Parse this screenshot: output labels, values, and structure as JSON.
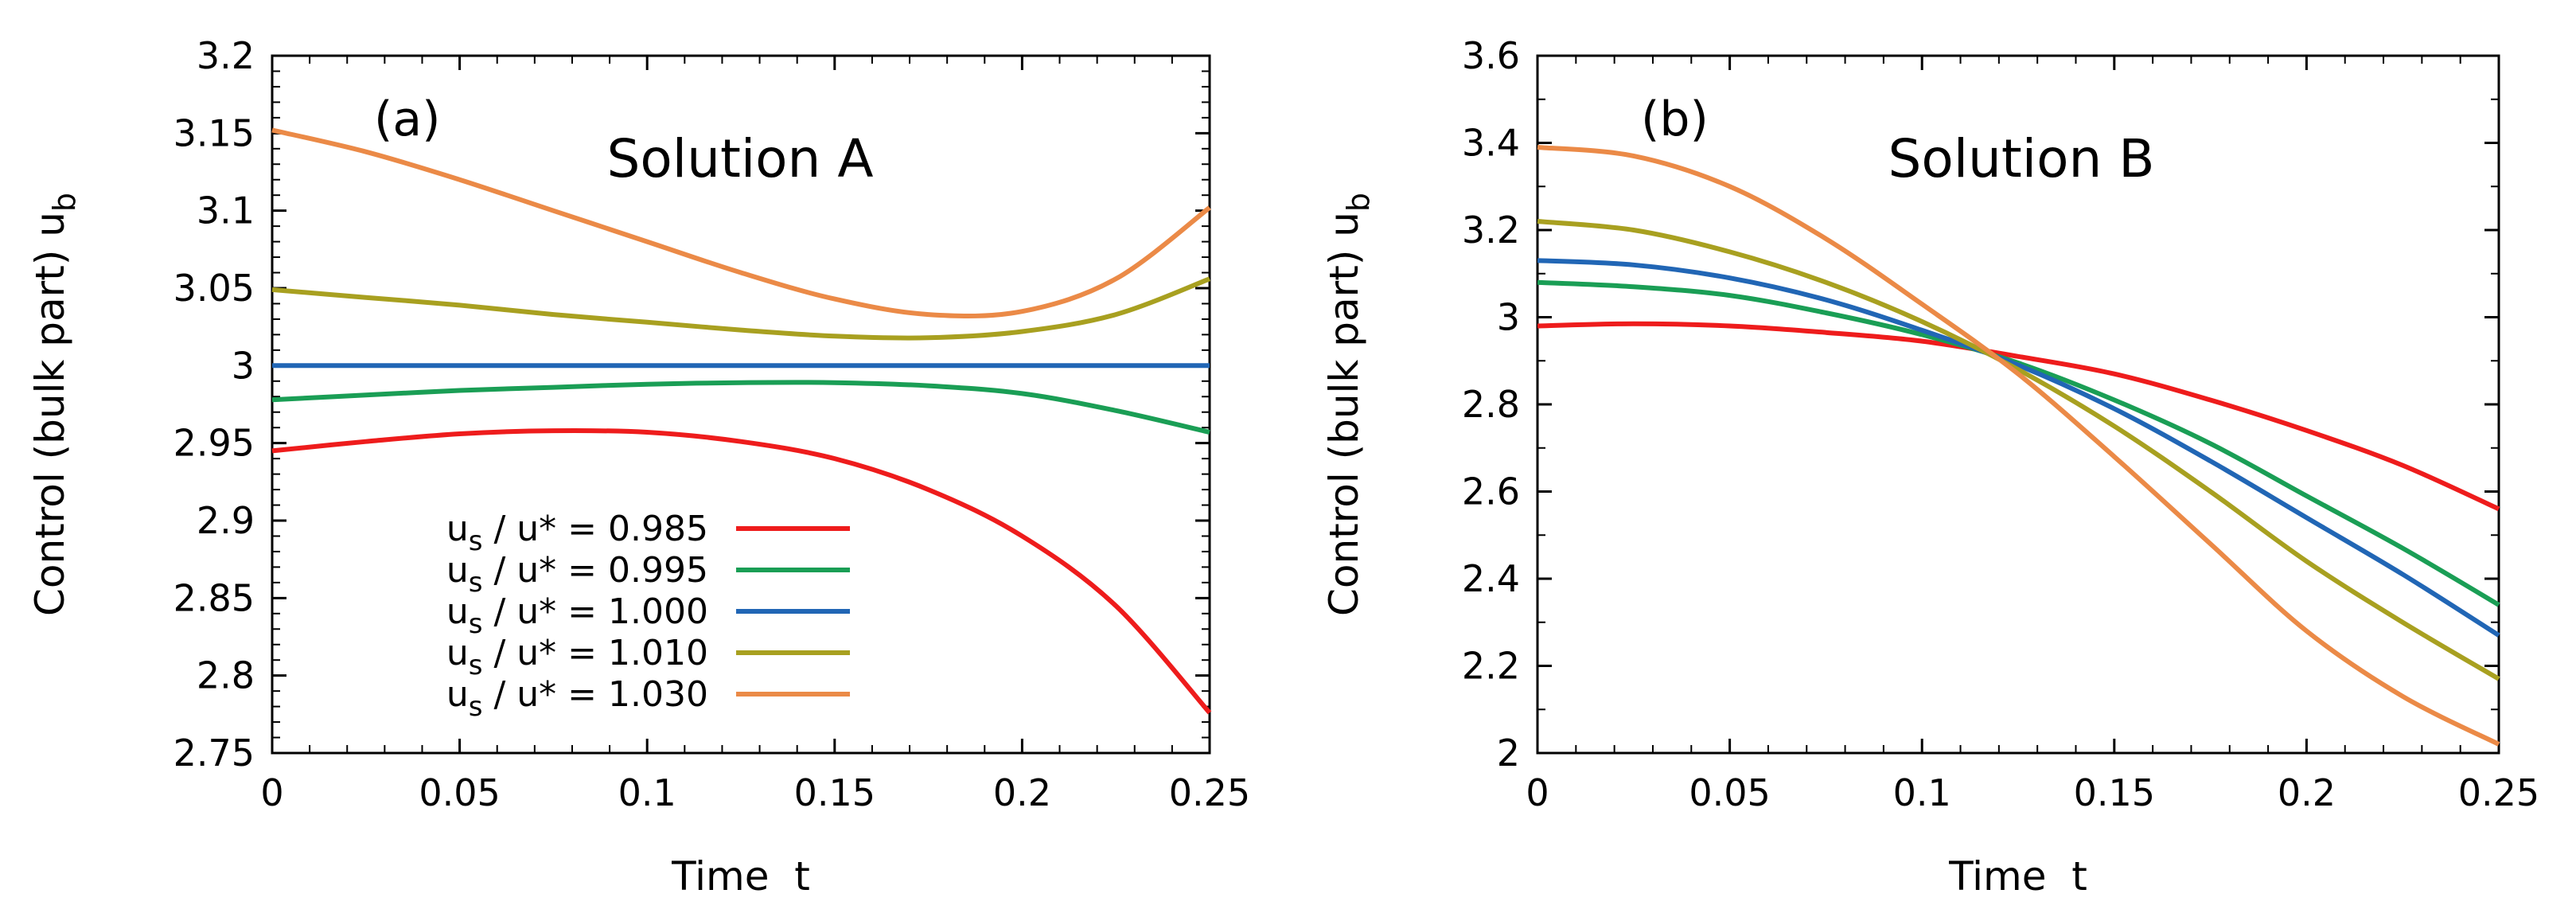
{
  "chart_data": [
    {
      "panel_label": "(a)",
      "title": "Solution A",
      "type": "line",
      "xlabel": "Time  t",
      "ylabel": "Control (bulk part) u",
      "ylabel_sub": "b",
      "xlim": [
        0,
        0.25
      ],
      "ylim": [
        2.75,
        3.2
      ],
      "xticks": [
        0,
        0.05,
        0.1,
        0.15,
        0.2,
        0.25
      ],
      "xtick_labels": [
        "0",
        "0.05",
        "0.1",
        "0.15",
        "0.2",
        "0.25"
      ],
      "yticks": [
        2.75,
        2.8,
        2.85,
        2.9,
        2.95,
        3.0,
        3.05,
        3.1,
        3.15,
        3.2
      ],
      "ytick_labels": [
        "2.75",
        "2.8",
        "2.85",
        "2.9",
        "2.95",
        "3",
        "3.05",
        "3.1",
        "3.15",
        "3.2"
      ],
      "grid": false,
      "legend_position": "bottom-left",
      "x": [
        0,
        0.025,
        0.05,
        0.075,
        0.1,
        0.125,
        0.15,
        0.175,
        0.2,
        0.225,
        0.25
      ],
      "series": [
        {
          "name": "0.985",
          "color": "#ee1c1c",
          "values": [
            2.945,
            2.951,
            2.956,
            2.958,
            2.957,
            2.951,
            2.94,
            2.92,
            2.89,
            2.845,
            2.776
          ]
        },
        {
          "name": "0.995",
          "color": "#1a9e55",
          "values": [
            2.978,
            2.981,
            2.984,
            2.986,
            2.988,
            2.989,
            2.989,
            2.987,
            2.982,
            2.971,
            2.957
          ]
        },
        {
          "name": "1.000",
          "color": "#2166b5",
          "values": [
            3.0,
            3.0,
            3.0,
            3.0,
            3.0,
            3.0,
            3.0,
            3.0,
            3.0,
            3.0,
            3.0
          ]
        },
        {
          "name": "1.010",
          "color": "#a8a020",
          "values": [
            3.049,
            3.044,
            3.039,
            3.033,
            3.028,
            3.023,
            3.019,
            3.018,
            3.022,
            3.033,
            3.056
          ]
        },
        {
          "name": "1.030",
          "color": "#eb8a47",
          "values": [
            3.152,
            3.138,
            3.12,
            3.1,
            3.08,
            3.06,
            3.043,
            3.033,
            3.035,
            3.056,
            3.102
          ]
        }
      ]
    },
    {
      "panel_label": "(b)",
      "title": "Solution B",
      "type": "line",
      "xlabel": "Time  t",
      "ylabel": "Control (bulk part) u",
      "ylabel_sub": "b",
      "xlim": [
        0,
        0.25
      ],
      "ylim": [
        2.0,
        3.6
      ],
      "xticks": [
        0,
        0.05,
        0.1,
        0.15,
        0.2,
        0.25
      ],
      "xtick_labels": [
        "0",
        "0.05",
        "0.1",
        "0.15",
        "0.2",
        "0.25"
      ],
      "yticks": [
        2.0,
        2.2,
        2.4,
        2.6,
        2.8,
        3.0,
        3.2,
        3.4,
        3.6
      ],
      "ytick_labels": [
        "2",
        "2.2",
        "2.4",
        "2.6",
        "2.8",
        "3",
        "3.2",
        "3.4",
        "3.6"
      ],
      "grid": false,
      "x": [
        0,
        0.025,
        0.05,
        0.075,
        0.1,
        0.125,
        0.15,
        0.175,
        0.2,
        0.225,
        0.25
      ],
      "series": [
        {
          "name": "0.985",
          "color": "#ee1c1c",
          "values": [
            2.98,
            2.985,
            2.98,
            2.965,
            2.945,
            2.91,
            2.87,
            2.81,
            2.74,
            2.66,
            2.56
          ]
        },
        {
          "name": "0.995",
          "color": "#1a9e55",
          "values": [
            3.08,
            3.07,
            3.05,
            3.01,
            2.96,
            2.895,
            2.81,
            2.71,
            2.59,
            2.47,
            2.34
          ]
        },
        {
          "name": "1.000",
          "color": "#2166b5",
          "values": [
            3.13,
            3.12,
            3.09,
            3.04,
            2.97,
            2.89,
            2.79,
            2.67,
            2.54,
            2.41,
            2.27
          ]
        },
        {
          "name": "1.010",
          "color": "#a8a020",
          "values": [
            3.22,
            3.2,
            3.15,
            3.08,
            2.99,
            2.88,
            2.75,
            2.6,
            2.44,
            2.3,
            2.17
          ]
        },
        {
          "name": "1.030",
          "color": "#eb8a47",
          "values": [
            3.39,
            3.37,
            3.3,
            3.18,
            3.03,
            2.87,
            2.68,
            2.48,
            2.28,
            2.13,
            2.02
          ]
        }
      ]
    }
  ],
  "legend": {
    "entries": [
      {
        "prefix": "u",
        "sub": "s",
        "suffix": " / u* = ",
        "value": "0.985",
        "color": "#ee1c1c"
      },
      {
        "prefix": "u",
        "sub": "s",
        "suffix": " / u* = ",
        "value": "0.995",
        "color": "#1a9e55"
      },
      {
        "prefix": "u",
        "sub": "s",
        "suffix": " / u* = ",
        "value": "1.000",
        "color": "#2166b5"
      },
      {
        "prefix": "u",
        "sub": "s",
        "suffix": " / u* = ",
        "value": "1.010",
        "color": "#a8a020"
      },
      {
        "prefix": "u",
        "sub": "s",
        "suffix": " / u* = ",
        "value": "1.030",
        "color": "#eb8a47"
      }
    ]
  }
}
